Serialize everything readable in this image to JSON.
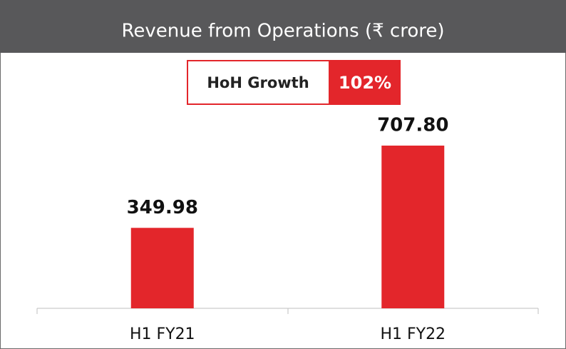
{
  "chart_data": {
    "type": "bar",
    "title": "Revenue from Operations (₹ crore)",
    "annotation": {
      "label": "HoH Growth",
      "value": "102%"
    },
    "categories": [
      "H1 FY21",
      "H1 FY22"
    ],
    "values": [
      349.98,
      707.8
    ],
    "value_labels": [
      "349.98",
      "707.80"
    ],
    "color": "#e3262b"
  }
}
